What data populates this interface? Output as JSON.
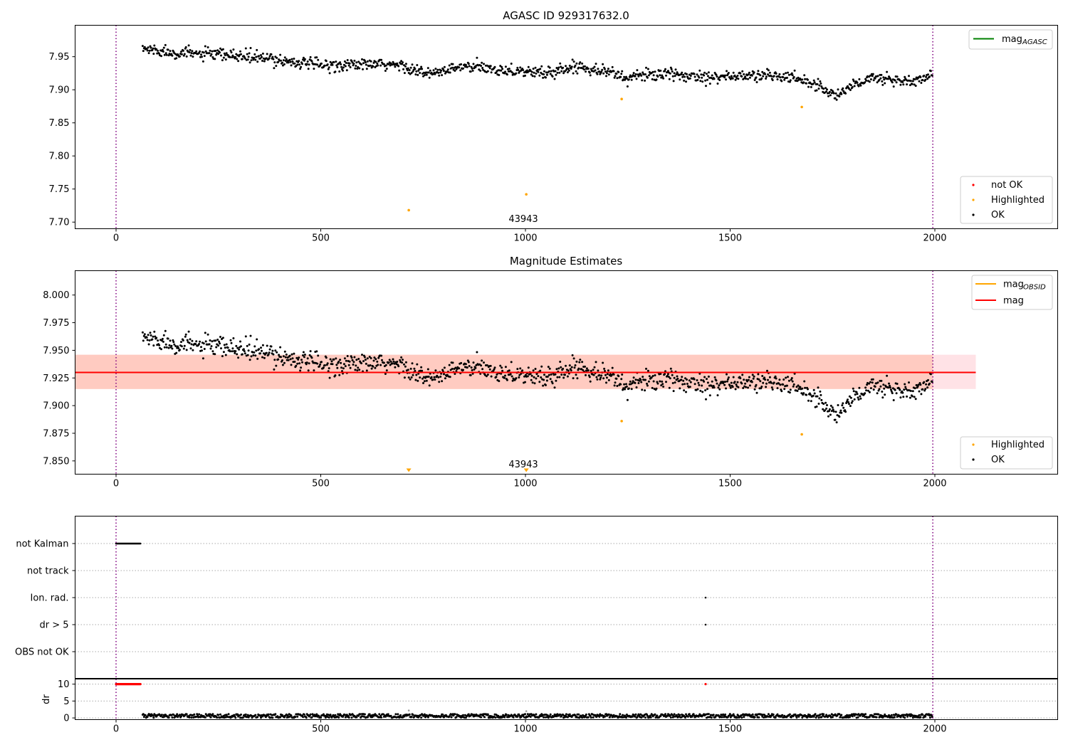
{
  "chart_data": [
    {
      "id": "p1",
      "type": "scatter",
      "title": "AGASC ID 929317632.0",
      "xlim": [
        -100,
        2300
      ],
      "ylim": [
        7.69,
        7.9975
      ],
      "xticks": [
        0,
        500,
        1000,
        1500,
        2000
      ],
      "xtick_labels": [
        "0",
        "500",
        "1000",
        "1500",
        "2000"
      ],
      "yticks": [
        7.7,
        7.75,
        7.8,
        7.85,
        7.9,
        7.95
      ],
      "ytick_labels": [
        "7.70",
        "7.75",
        "7.80",
        "7.85",
        "7.90",
        "7.95"
      ],
      "vlines_x": [
        0,
        1995
      ],
      "vline_color": "#800080",
      "colors": {
        "ok": "#000000",
        "highlighted": "#ffa500",
        "not_ok": "#ff0000",
        "mag_agasc": "#008000"
      },
      "ok_trend": [
        [
          65,
          7.962
        ],
        [
          150,
          7.956
        ],
        [
          300,
          7.951
        ],
        [
          400,
          7.945
        ],
        [
          500,
          7.937
        ],
        [
          600,
          7.938
        ],
        [
          700,
          7.937
        ],
        [
          760,
          7.923
        ],
        [
          850,
          7.935
        ],
        [
          950,
          7.93
        ],
        [
          1050,
          7.925
        ],
        [
          1130,
          7.936
        ],
        [
          1200,
          7.928
        ],
        [
          1250,
          7.917
        ],
        [
          1300,
          7.924
        ],
        [
          1400,
          7.921
        ],
        [
          1500,
          7.92
        ],
        [
          1600,
          7.922
        ],
        [
          1680,
          7.915
        ],
        [
          1720,
          7.905
        ],
        [
          1760,
          7.89
        ],
        [
          1800,
          7.908
        ],
        [
          1850,
          7.918
        ],
        [
          1950,
          7.912
        ],
        [
          1995,
          7.922
        ]
      ],
      "ok_noise": 0.0045,
      "ok_x_range": [
        65,
        1995
      ],
      "ok_count": 1150,
      "highlighted_points": [
        [
          715,
          7.718
        ],
        [
          1235,
          7.886
        ],
        [
          1675,
          7.874
        ],
        [
          1002,
          7.742
        ]
      ],
      "annotation": {
        "text": "43943",
        "x": 1000,
        "y": 7.695
      },
      "legend_lines": [
        {
          "label": "mag",
          "sub": "AGASC",
          "color": "#008000"
        }
      ],
      "legend_points": [
        {
          "label": "not OK",
          "color": "#ff0000"
        },
        {
          "label": "Highlighted",
          "color": "#ffa500"
        },
        {
          "label": "OK",
          "color": "#000000"
        }
      ]
    },
    {
      "id": "p2",
      "type": "scatter",
      "title": "Magnitude Estimates",
      "xlim": [
        -100,
        2300
      ],
      "ylim": [
        7.838,
        8.022
      ],
      "xticks": [
        0,
        500,
        1000,
        1500,
        2000
      ],
      "xtick_labels": [
        "0",
        "500",
        "1000",
        "1500",
        "2000"
      ],
      "yticks": [
        7.85,
        7.875,
        7.9,
        7.925,
        7.95,
        7.975,
        8.0
      ],
      "ytick_labels": [
        "7.850",
        "7.875",
        "7.900",
        "7.925",
        "7.950",
        "7.975",
        "8.000"
      ],
      "vlines_x": [
        0,
        1995
      ],
      "mag_obsid": {
        "x_range": [
          -100,
          1995
        ],
        "y": 7.93,
        "band": [
          7.915,
          7.946
        ],
        "color": "#ffa500"
      },
      "mag": {
        "x_range": [
          -100,
          2100
        ],
        "y": 7.93,
        "band": [
          7.915,
          7.946
        ],
        "color": "#ff0000"
      },
      "ok_trend": [
        [
          65,
          7.962
        ],
        [
          150,
          7.956
        ],
        [
          300,
          7.951
        ],
        [
          400,
          7.945
        ],
        [
          500,
          7.937
        ],
        [
          600,
          7.938
        ],
        [
          700,
          7.937
        ],
        [
          760,
          7.923
        ],
        [
          850,
          7.935
        ],
        [
          950,
          7.93
        ],
        [
          1050,
          7.925
        ],
        [
          1130,
          7.936
        ],
        [
          1200,
          7.928
        ],
        [
          1250,
          7.917
        ],
        [
          1300,
          7.924
        ],
        [
          1400,
          7.921
        ],
        [
          1500,
          7.92
        ],
        [
          1600,
          7.922
        ],
        [
          1680,
          7.915
        ],
        [
          1720,
          7.905
        ],
        [
          1760,
          7.89
        ],
        [
          1800,
          7.908
        ],
        [
          1850,
          7.918
        ],
        [
          1950,
          7.912
        ],
        [
          1995,
          7.922
        ]
      ],
      "ok_noise": 0.0045,
      "highlighted_points": [
        [
          1235,
          7.886
        ],
        [
          1675,
          7.874
        ]
      ],
      "offscale_markers": [
        [
          715,
          7.84
        ],
        [
          1002,
          7.84
        ]
      ],
      "annotation": {
        "text": "43943",
        "x": 1000,
        "y": 7.844
      },
      "legend_lines": [
        {
          "label": "mag",
          "sub": "OBSID",
          "color": "#ffa500"
        },
        {
          "label": "mag",
          "sub": "",
          "color": "#ff0000"
        }
      ],
      "legend_points": [
        {
          "label": "Highlighted",
          "color": "#ffa500"
        },
        {
          "label": "OK",
          "color": "#000000"
        }
      ]
    },
    {
      "id": "p3",
      "type": "scatter",
      "xlim": [
        -100,
        2300
      ],
      "flag_rows": [
        "not Kalman",
        "not track",
        "Ion. rad.",
        "dr > 5",
        "OBS not OK"
      ],
      "not_kalman_x_range": [
        0,
        60
      ],
      "ion_rad_points": [
        1440
      ],
      "dr_gt5_points": [
        1440
      ],
      "vlines_x": [
        0,
        1995
      ]
    },
    {
      "id": "p4",
      "type": "scatter",
      "ylabel": "dr",
      "xlim": [
        -100,
        2300
      ],
      "ylim": [
        -0.5,
        11.5
      ],
      "xticks": [
        0,
        500,
        1000,
        1500,
        2000
      ],
      "xtick_labels": [
        "0",
        "500",
        "1000",
        "1500",
        "2000"
      ],
      "yticks": [
        0,
        5,
        10
      ],
      "ytick_labels": [
        "0",
        "5",
        "10"
      ],
      "red_row": {
        "y": 10,
        "x_range": [
          0,
          60
        ],
        "extra_x": [
          1440
        ]
      },
      "dr_baseline": {
        "x_range": [
          65,
          1995
        ],
        "mean": 0.6,
        "spread": 0.7
      },
      "dr_outliers": [
        [
          715,
          2.2
        ],
        [
          1002,
          2.0
        ]
      ],
      "vlines_x": [
        0,
        1995
      ]
    }
  ]
}
